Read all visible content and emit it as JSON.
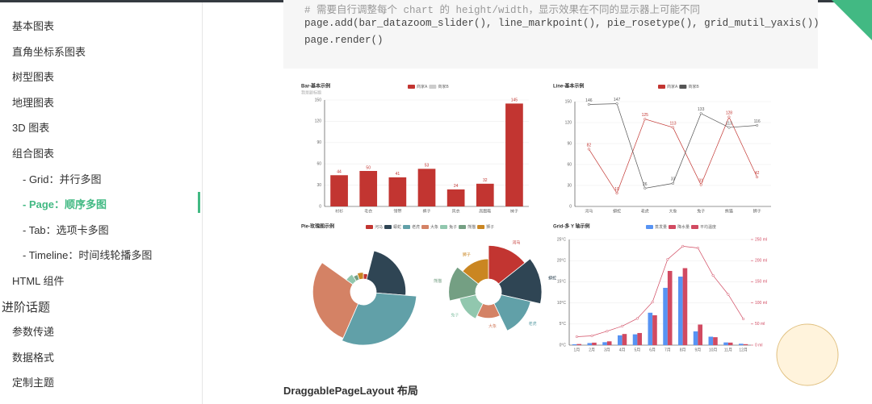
{
  "sidebar": {
    "items": [
      {
        "text": "基本图表",
        "level": 1
      },
      {
        "text": "直角坐标系图表",
        "level": 1
      },
      {
        "text": "树型图表",
        "level": 1
      },
      {
        "text": "地理图表",
        "level": 1
      },
      {
        "text": "3D 图表",
        "level": 1
      },
      {
        "text": "组合图表",
        "level": 1
      },
      {
        "text": "- Grid：并行多图",
        "level": 2
      },
      {
        "text": "- Page：顺序多图",
        "level": 2,
        "active": true
      },
      {
        "text": "- Tab：选项卡多图",
        "level": 2
      },
      {
        "text": "- Timeline：时间线轮播多图",
        "level": 2
      },
      {
        "text": "HTML 组件",
        "level": 1
      },
      {
        "text": "进阶话题",
        "level": 0
      },
      {
        "text": "参数传递",
        "level": 1
      },
      {
        "text": "数据格式",
        "level": 1
      },
      {
        "text": "定制主题",
        "level": 1
      }
    ]
  },
  "code": {
    "lines": [
      "# 需要自行调整每个 chart 的 height/width，显示效果在不同的显示器上可能不同",
      "page.add(bar_datazoom_slider(), line_markpoint(), pie_rosetype(), grid_mutil_yaxis())",
      "page.render()"
    ]
  },
  "chart_data": [
    {
      "type": "bar",
      "title": "Bar-基本示例",
      "subtitle": "我是副标题",
      "show_labels": true,
      "legend": [
        {
          "name": "商家A",
          "color": "#c23531"
        },
        {
          "name": "商家B",
          "color": "#cccccc"
        }
      ],
      "categories": [
        "衬衫",
        "毛衣",
        "领带",
        "裤子",
        "风衣",
        "高跟鞋",
        "袜子"
      ],
      "series": [
        {
          "name": "商家A",
          "color": "#c23531",
          "values": [
            44,
            50,
            41,
            53,
            24,
            32,
            145
          ]
        }
      ],
      "ylim": [
        0,
        150
      ],
      "yticks": [
        0,
        30,
        60,
        90,
        120,
        150
      ]
    },
    {
      "type": "line",
      "title": "Line-基本示例",
      "show_labels": true,
      "categories": [
        "河马",
        "蟒蛇",
        "老虎",
        "大象",
        "兔子",
        "熊猫",
        "狮子"
      ],
      "series": [
        {
          "name": "商家A",
          "color": "#c23531",
          "values": [
            82,
            19,
            125,
            113,
            31,
            128,
            42
          ]
        },
        {
          "name": "商家B",
          "color": "#555555",
          "values": [
            146,
            147,
            26,
            33,
            133,
            113,
            116
          ]
        }
      ],
      "ylim": [
        0,
        150
      ],
      "yticks": [
        0,
        30,
        60,
        90,
        120,
        150
      ]
    },
    {
      "type": "pie",
      "title": "Pie-玫瑰图示例",
      "categories": [
        "河马",
        "蟒蛇",
        "老虎",
        "大象",
        "兔子",
        "熊猫",
        "狮子"
      ],
      "colors": [
        "#c23531",
        "#2f4554",
        "#61a0a8",
        "#d48265",
        "#91c7ae",
        "#749f83",
        "#ca8622"
      ],
      "series": [
        {
          "rosetype": "radius",
          "values": [
            20,
            110,
            150,
            140,
            30,
            20,
            25
          ]
        },
        {
          "rosetype": "area",
          "values": [
            100,
            120,
            90,
            40,
            50,
            80,
            60
          ]
        }
      ]
    },
    {
      "type": "bar",
      "title": "Grid-多 Y 轴示例",
      "categories": [
        "1月",
        "2月",
        "3月",
        "4月",
        "5月",
        "6月",
        "7月",
        "8月",
        "9月",
        "10月",
        "11月",
        "12月"
      ],
      "series": [
        {
          "name": "蒸发量",
          "type": "bar",
          "color": "#5793f3",
          "axis": "y2",
          "values": [
            2.0,
            4.9,
            7.0,
            23.2,
            25.6,
            76.7,
            135.6,
            162.2,
            32.6,
            20.0,
            6.4,
            3.3
          ]
        },
        {
          "name": "降水量",
          "type": "bar",
          "color": "#d14a61",
          "axis": "y2",
          "values": [
            2.6,
            5.9,
            9.0,
            26.4,
            28.7,
            70.7,
            175.6,
            182.2,
            48.7,
            18.8,
            6.0,
            2.3
          ]
        },
        {
          "name": "平均温度",
          "type": "line",
          "color": "#d14a61",
          "values": [
            2.0,
            2.2,
            3.3,
            4.5,
            6.3,
            10.2,
            20.3,
            23.4,
            23.0,
            16.5,
            12.0,
            6.2
          ]
        }
      ],
      "ylim": [
        0,
        25
      ],
      "yticks": [
        {
          "value": 0,
          "label": "0°C"
        },
        {
          "value": 5,
          "label": "5°C"
        },
        {
          "value": 10,
          "label": "10°C"
        },
        {
          "value": 15,
          "label": "15°C"
        },
        {
          "value": 20,
          "label": "20°C"
        },
        {
          "value": 25,
          "label": "25°C"
        }
      ],
      "y2lim": [
        0,
        250
      ],
      "y2ticks": [
        {
          "value": 0,
          "label": "0 ml"
        },
        {
          "value": 50,
          "label": "50 ml"
        },
        {
          "value": 100,
          "label": "100 ml"
        },
        {
          "value": 150,
          "label": "150 ml"
        },
        {
          "value": 200,
          "label": "200 ml"
        },
        {
          "value": 250,
          "label": "250 ml"
        }
      ]
    }
  ],
  "heading": "DraggablePageLayout 布局"
}
